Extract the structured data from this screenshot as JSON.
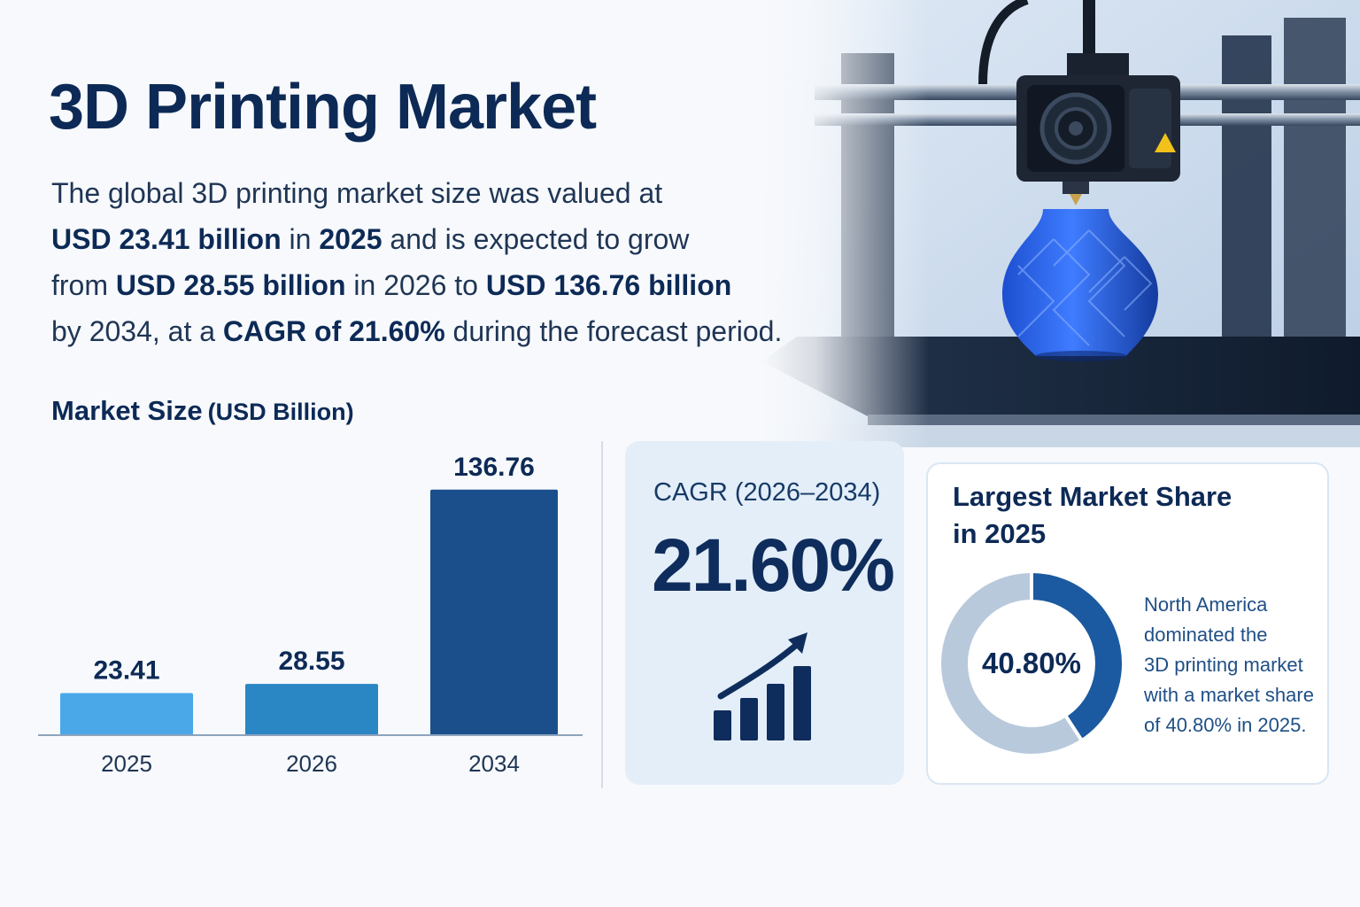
{
  "header": {
    "title": "3D Printing Market",
    "intro": [
      [
        {
          "t": "The global 3D printing market size was valued at",
          "b": false
        }
      ],
      [
        {
          "t": "USD 23.41 billion",
          "b": true
        },
        {
          "t": " in ",
          "b": false
        },
        {
          "t": "2025",
          "b": true
        },
        {
          "t": " and is expected to grow",
          "b": false
        }
      ],
      [
        {
          "t": "from ",
          "b": false
        },
        {
          "t": "USD 28.55 billion",
          "b": true
        },
        {
          "t": " in 2026 to ",
          "b": false
        },
        {
          "t": "USD 136.76 billion",
          "b": true
        }
      ],
      [
        {
          "t": "by 2034, at a ",
          "b": false
        },
        {
          "t": "CAGR of 21.60%",
          "b": true
        },
        {
          "t": " during the forecast period.",
          "b": false
        }
      ]
    ]
  },
  "chart_data": {
    "type": "bar",
    "title": "Market Size",
    "unit": "(USD Billion)",
    "categories": [
      "2025",
      "2026",
      "2034"
    ],
    "values": [
      23.41,
      28.55,
      136.76
    ],
    "value_labels": [
      "23.41",
      "28.55",
      "136.76"
    ],
    "colors": [
      "#4aa8e8",
      "#2b86c4",
      "#1b4f8c"
    ],
    "ylim": [
      0,
      148
    ],
    "grid": false,
    "legend": "none"
  },
  "cagr": {
    "label": "CAGR (2026–2034)",
    "value": "21.60%",
    "icon": "growth-chart-icon"
  },
  "share": {
    "title_lines": [
      "Largest Market Share",
      "in 2025"
    ],
    "percent": 40.8,
    "percent_label": "40.80%",
    "description_lines": [
      "North America",
      "dominated the",
      "3D printing market",
      "with a market share",
      "of 40.80% in 2025."
    ],
    "colors": {
      "share": "#1b5aa0",
      "rest": "#b9c9dc"
    }
  }
}
